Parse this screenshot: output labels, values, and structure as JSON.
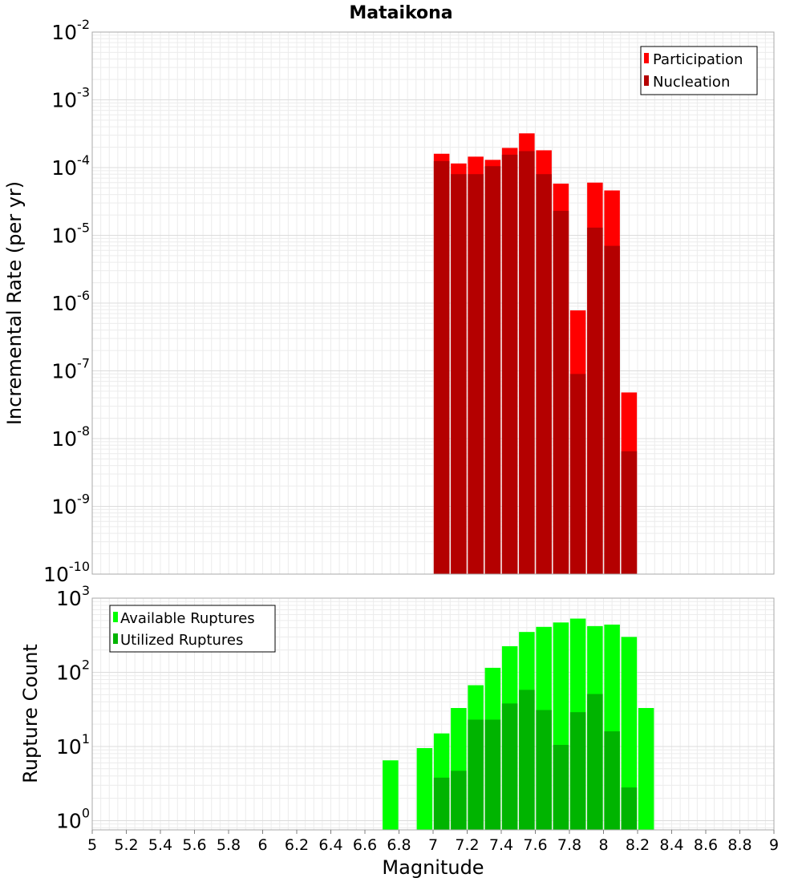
{
  "chart_data": [
    {
      "type": "bar",
      "title": "Mataikona",
      "ylabel": "Incremental Rate (per yr)",
      "yscale": "log",
      "ylim": [
        1e-10,
        0.01
      ],
      "y_tick_exponents": [
        "-10",
        "-9",
        "-8",
        "-7",
        "-6",
        "-5",
        "-4",
        "-3",
        "-2"
      ],
      "legend_position": "top-right",
      "grid": true,
      "series": [
        {
          "name": "Participation",
          "color": "#ff0000",
          "x": [
            7.05,
            7.15,
            7.25,
            7.35,
            7.45,
            7.55,
            7.65,
            7.75,
            7.85,
            7.95,
            8.05,
            8.15
          ],
          "values": [
            0.00016,
            0.000115,
            0.000145,
            0.00013,
            0.000195,
            0.00032,
            0.00018,
            5.8e-05,
            7.8e-07,
            6e-05,
            4.6e-05,
            4.8e-08
          ]
        },
        {
          "name": "Nucleation",
          "color": "#b40000",
          "x": [
            7.05,
            7.15,
            7.25,
            7.35,
            7.45,
            7.55,
            7.65,
            7.75,
            7.85,
            7.95,
            8.05,
            8.15
          ],
          "values": [
            0.000125,
            8e-05,
            8e-05,
            0.000105,
            0.000155,
            0.000175,
            8e-05,
            2.3e-05,
            9e-08,
            1.3e-05,
            7e-06,
            6.5e-09
          ]
        }
      ]
    },
    {
      "type": "bar",
      "xlabel": "Magnitude",
      "ylabel": "Rupture Count",
      "yscale": "log",
      "ylim": [
        0.75,
        1000
      ],
      "y_tick_exponents": [
        "0",
        "1",
        "2",
        "3"
      ],
      "xlim": [
        5,
        9
      ],
      "x_ticks": [
        "5",
        "5.2",
        "5.4",
        "5.6",
        "5.8",
        "6",
        "6.2",
        "6.4",
        "6.6",
        "6.8",
        "7",
        "7.2",
        "7.4",
        "7.6",
        "7.8",
        "8",
        "8.2",
        "8.4",
        "8.6",
        "8.8",
        "9"
      ],
      "legend_position": "top-left",
      "grid": true,
      "series": [
        {
          "name": "Available Ruptures",
          "color": "#00ff00",
          "x": [
            6.75,
            6.95,
            7.05,
            7.15,
            7.25,
            7.35,
            7.45,
            7.55,
            7.65,
            7.75,
            7.85,
            7.95,
            8.05,
            8.15,
            8.25
          ],
          "values": [
            6.5,
            9.5,
            15,
            33,
            67,
            115,
            225,
            350,
            410,
            470,
            530,
            420,
            440,
            300,
            33
          ]
        },
        {
          "name": "Utilized Ruptures",
          "color": "#00b400",
          "x": [
            7.05,
            7.15,
            7.25,
            7.35,
            7.45,
            7.55,
            7.65,
            7.75,
            7.85,
            7.95,
            8.05,
            8.15
          ],
          "values": [
            3.8,
            4.7,
            23,
            23,
            38,
            58,
            31,
            10.5,
            29,
            51,
            16,
            2.8
          ]
        }
      ]
    }
  ]
}
